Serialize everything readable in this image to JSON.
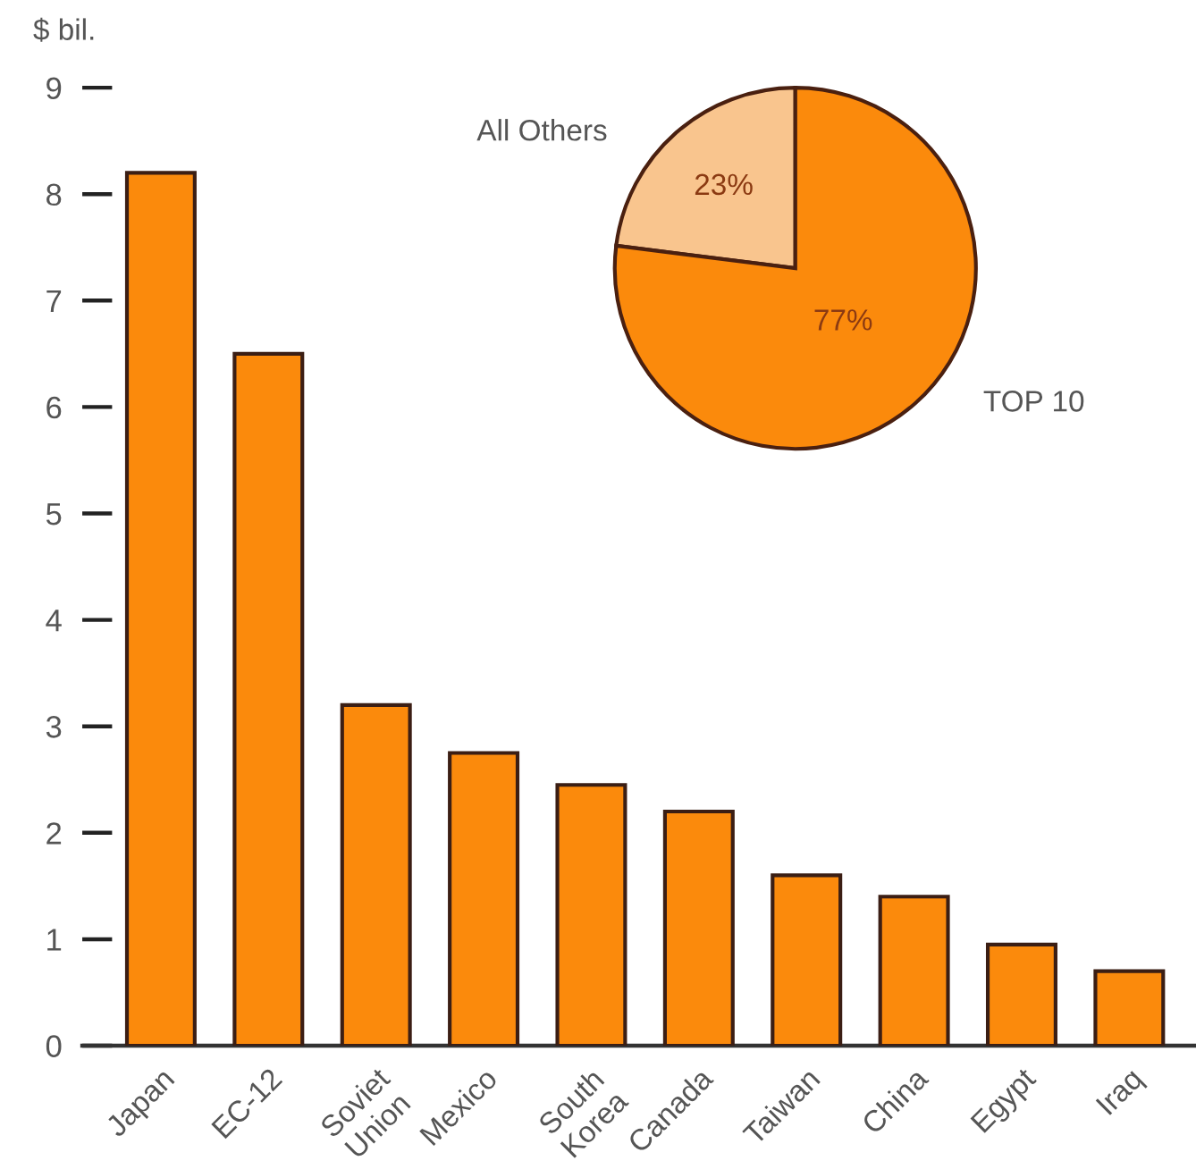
{
  "chart_data": [
    {
      "type": "bar",
      "ylabel": "$ bil.",
      "categories": [
        "Japan",
        "EC-12",
        "Soviet\nUnion",
        "Mexico",
        "South\nKorea",
        "Canada",
        "Taiwan",
        "China",
        "Egypt",
        "Iraq"
      ],
      "values": [
        8.2,
        6.5,
        3.2,
        2.75,
        2.45,
        2.2,
        1.6,
        1.4,
        0.95,
        0.7
      ],
      "color": "#fb8a0c",
      "ylim": [
        0,
        9
      ],
      "yticks": [
        0,
        1,
        2,
        3,
        4,
        5,
        6,
        7,
        8,
        9
      ]
    },
    {
      "type": "pie",
      "categories": [
        "All Others",
        "TOP 10"
      ],
      "values": [
        23,
        77
      ],
      "colors": [
        "#f9c58e",
        "#fb8a0c"
      ],
      "value_labels": [
        "23%",
        "77%"
      ]
    }
  ]
}
